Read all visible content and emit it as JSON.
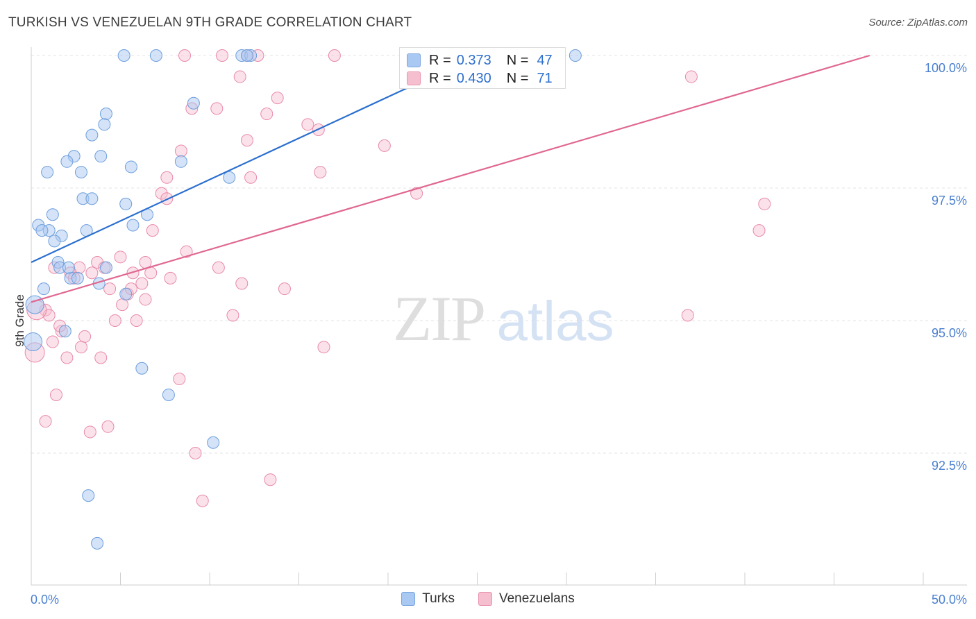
{
  "header": {
    "title": "TURKISH VS VENEZUELAN 9TH GRADE CORRELATION CHART",
    "source": "Source: ZipAtlas.com"
  },
  "watermark": {
    "zip": "ZIP",
    "atlas": "atlas"
  },
  "stats": {
    "r_label": "R =",
    "n_label": "N =",
    "rows": [
      {
        "r": "0.373",
        "n": "47",
        "color": "#a9c8f2",
        "border": "#7aa6e0"
      },
      {
        "r": "0.430",
        "n": "71",
        "color": "#f6bfd0",
        "border": "#e993ae"
      }
    ]
  },
  "legend": {
    "turks": "Turks",
    "venezuelans": "Venezuelans"
  },
  "colors": {
    "turks_fill": "#a9c8f2",
    "turks_stroke": "#6d9edc",
    "turks_line": "#2a6fcf",
    "venez_fill": "#f6bfd0",
    "venez_stroke": "#e88aa8",
    "venez_line": "#e06792",
    "axis_label": "#4a7fcf"
  },
  "chart_data": {
    "type": "scatter",
    "title": "TURKISH VS VENEZUELAN 9TH GRADE CORRELATION CHART",
    "xlabel": "",
    "ylabel": "9th Grade",
    "xlim": [
      0,
      50
    ],
    "ylim": [
      90.0,
      100.2
    ],
    "x_tick_labels": [
      {
        "value": 0,
        "label": "0.0%"
      },
      {
        "value": 50,
        "label": "50.0%"
      }
    ],
    "x_minor_ticks": [
      0,
      5,
      10,
      15,
      20,
      25,
      30,
      35,
      40,
      45,
      50
    ],
    "y_ticks": [
      {
        "value": 100.0,
        "label": "100.0%"
      },
      {
        "value": 97.5,
        "label": "97.5%"
      },
      {
        "value": 95.0,
        "label": "95.0%"
      },
      {
        "value": 92.5,
        "label": "92.5%"
      }
    ],
    "series": [
      {
        "name": "Turks",
        "r": 0.373,
        "n": 47,
        "trend": {
          "x": [
            0,
            25
          ],
          "y": [
            96.1,
            100.0
          ]
        },
        "points": [
          [
            5.2,
            100.0
          ],
          [
            7.0,
            100.0
          ],
          [
            11.8,
            100.0
          ],
          [
            12.3,
            100.0
          ],
          [
            12.1,
            100.0
          ],
          [
            30.5,
            100.0
          ],
          [
            9.1,
            99.1
          ],
          [
            4.2,
            98.9
          ],
          [
            4.1,
            98.7
          ],
          [
            3.4,
            98.5
          ],
          [
            2.4,
            98.1
          ],
          [
            3.9,
            98.1
          ],
          [
            2.0,
            98.0
          ],
          [
            8.4,
            98.0
          ],
          [
            5.6,
            97.9
          ],
          [
            0.9,
            97.8
          ],
          [
            2.8,
            97.8
          ],
          [
            11.1,
            97.7
          ],
          [
            2.9,
            97.3
          ],
          [
            3.4,
            97.3
          ],
          [
            5.3,
            97.2
          ],
          [
            6.5,
            97.0
          ],
          [
            1.2,
            97.0
          ],
          [
            0.4,
            96.8
          ],
          [
            5.7,
            96.8
          ],
          [
            1.0,
            96.7
          ],
          [
            3.1,
            96.7
          ],
          [
            0.6,
            96.7
          ],
          [
            1.7,
            96.6
          ],
          [
            1.3,
            96.5
          ],
          [
            1.5,
            96.1
          ],
          [
            4.2,
            96.0
          ],
          [
            1.6,
            96.0
          ],
          [
            2.2,
            95.8
          ],
          [
            2.6,
            95.8
          ],
          [
            3.8,
            95.7
          ],
          [
            0.7,
            95.6
          ],
          [
            5.3,
            95.5
          ],
          [
            0.2,
            95.3
          ],
          [
            1.9,
            94.8
          ],
          [
            0.1,
            94.6
          ],
          [
            6.2,
            94.1
          ],
          [
            7.7,
            93.6
          ],
          [
            10.2,
            92.7
          ],
          [
            3.2,
            91.7
          ],
          [
            3.7,
            90.8
          ],
          [
            2.1,
            96.0
          ]
        ]
      },
      {
        "name": "Venezuelans",
        "r": 0.43,
        "n": 71,
        "trend": {
          "x": [
            0,
            47
          ],
          "y": [
            95.35,
            100.0
          ]
        },
        "points": [
          [
            8.6,
            100.0
          ],
          [
            10.7,
            100.0
          ],
          [
            12.1,
            100.0
          ],
          [
            12.7,
            100.0
          ],
          [
            17.0,
            100.0
          ],
          [
            37.0,
            99.6
          ],
          [
            11.7,
            99.6
          ],
          [
            13.8,
            99.2
          ],
          [
            10.4,
            99.0
          ],
          [
            9.0,
            99.0
          ],
          [
            13.2,
            98.9
          ],
          [
            15.5,
            98.7
          ],
          [
            16.1,
            98.6
          ],
          [
            12.1,
            98.4
          ],
          [
            19.8,
            98.3
          ],
          [
            8.4,
            98.2
          ],
          [
            16.2,
            97.8
          ],
          [
            7.6,
            97.7
          ],
          [
            12.3,
            97.7
          ],
          [
            7.3,
            97.4
          ],
          [
            21.6,
            97.4
          ],
          [
            7.6,
            97.3
          ],
          [
            41.1,
            97.2
          ],
          [
            40.8,
            96.7
          ],
          [
            6.8,
            96.7
          ],
          [
            8.7,
            96.3
          ],
          [
            5.0,
            96.2
          ],
          [
            6.4,
            96.1
          ],
          [
            3.7,
            96.1
          ],
          [
            10.5,
            96.0
          ],
          [
            2.7,
            96.0
          ],
          [
            1.3,
            96.0
          ],
          [
            4.1,
            96.0
          ],
          [
            5.7,
            95.9
          ],
          [
            2.2,
            95.9
          ],
          [
            3.4,
            95.9
          ],
          [
            6.7,
            95.9
          ],
          [
            7.8,
            95.8
          ],
          [
            2.4,
            95.8
          ],
          [
            11.8,
            95.7
          ],
          [
            14.2,
            95.6
          ],
          [
            4.4,
            95.6
          ],
          [
            6.2,
            95.7
          ],
          [
            5.4,
            95.5
          ],
          [
            5.6,
            95.6
          ],
          [
            6.4,
            95.4
          ],
          [
            5.1,
            95.3
          ],
          [
            0.8,
            95.2
          ],
          [
            1.0,
            95.1
          ],
          [
            11.3,
            95.1
          ],
          [
            36.8,
            95.1
          ],
          [
            4.7,
            95.0
          ],
          [
            5.9,
            95.0
          ],
          [
            1.7,
            94.8
          ],
          [
            3.0,
            94.7
          ],
          [
            1.2,
            94.6
          ],
          [
            16.4,
            94.5
          ],
          [
            2.8,
            94.5
          ],
          [
            0.2,
            94.4
          ],
          [
            3.9,
            94.3
          ],
          [
            2.0,
            94.3
          ],
          [
            8.3,
            93.9
          ],
          [
            1.4,
            93.6
          ],
          [
            0.8,
            93.1
          ],
          [
            4.3,
            93.0
          ],
          [
            3.3,
            92.9
          ],
          [
            9.2,
            92.5
          ],
          [
            13.4,
            92.0
          ],
          [
            9.6,
            91.6
          ],
          [
            1.6,
            94.9
          ],
          [
            0.3,
            95.2
          ]
        ]
      }
    ]
  }
}
